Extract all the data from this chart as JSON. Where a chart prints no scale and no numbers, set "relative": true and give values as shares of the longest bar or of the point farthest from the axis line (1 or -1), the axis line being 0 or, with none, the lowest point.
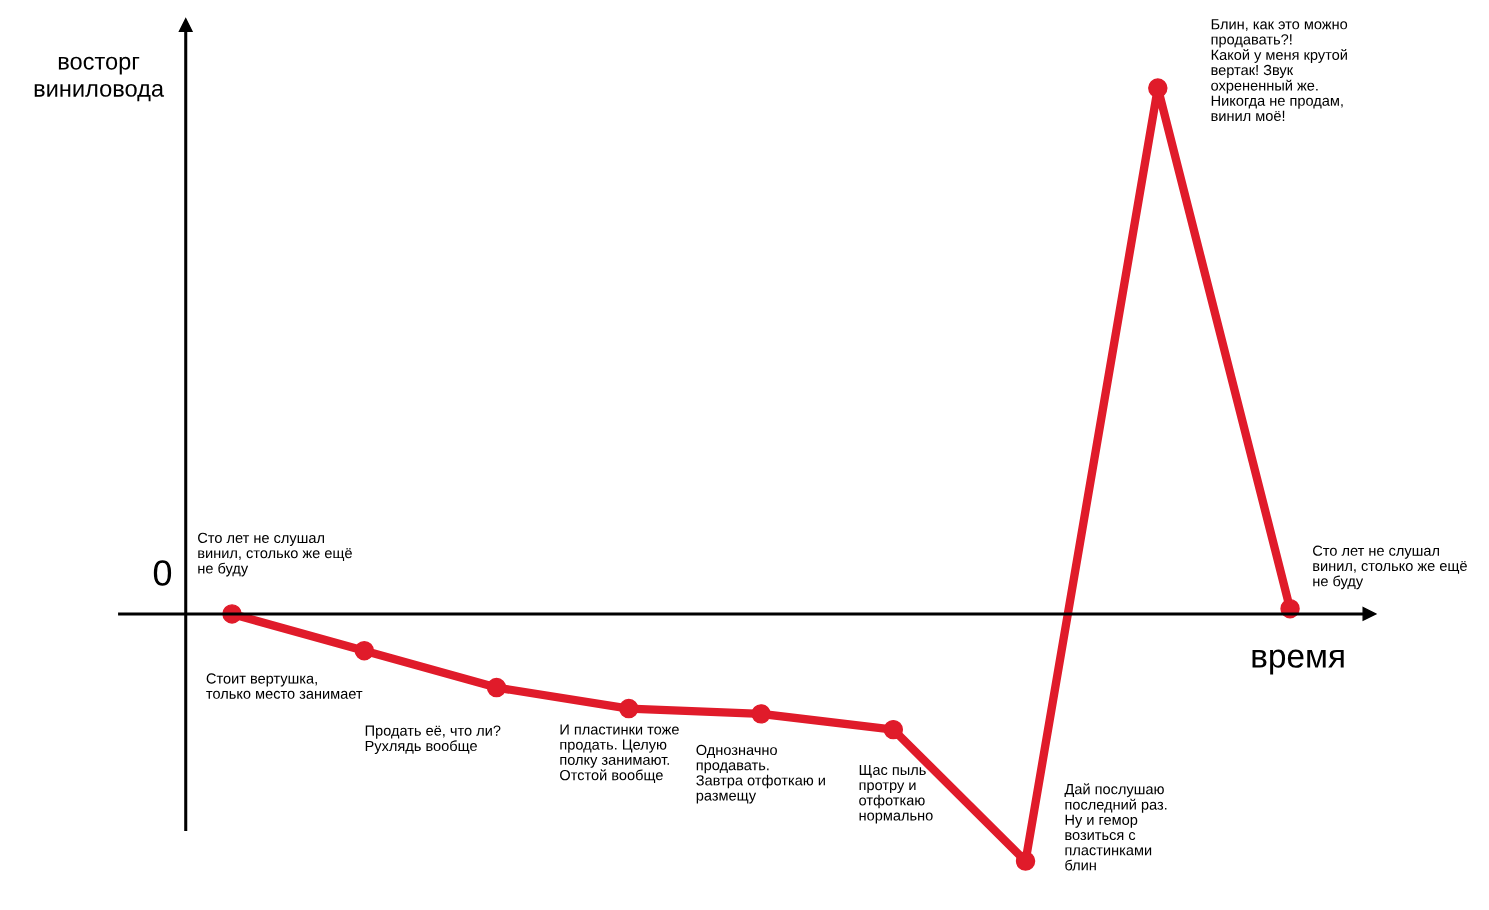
{
  "chart_data": {
    "type": "line",
    "relative": true,
    "xlabel": "время",
    "ylabel": "восторг\nвиниловода",
    "categories": [
      null,
      null,
      null,
      null,
      null,
      null,
      null,
      null,
      null
    ],
    "series": [
      {
        "color": "#e01b2a",
        "values": [
          0,
          -0.07,
          -0.14,
          -0.18,
          -0.19,
          -0.22,
          -0.47,
          1,
          0.01
        ]
      }
    ],
    "marker": "circle",
    "line_style": "solid",
    "annotations": [
      "0",
      "Сто лет не слушал\nвинил, столько же ещё\nне буду",
      "Стоит вертушка,\nтолько место занимает",
      "Продать её, что ли?\nРухлядь вообще",
      "И пластинки тоже\nпродать. Целую\nполку занимают.\nОтстой вообще",
      "Однозначно\nпродавать.\nЗавтра отфоткаю и\nразмещу",
      "Щас пыль\nпротру и\nотфоткаю\nнормально",
      "Дай послушаю\nпоследний раз.\nНу и гемор\nвозиться с\nпластинками\nблин",
      "Блин, как это можно\nпродавать?!\nКакой у меня крутой\nвертак! Звук\nохрененный же.\nНикогда не продам,\nвинил моё!",
      "Сто лет не слушал\nвинил, столько же ещё\nне буду"
    ]
  }
}
